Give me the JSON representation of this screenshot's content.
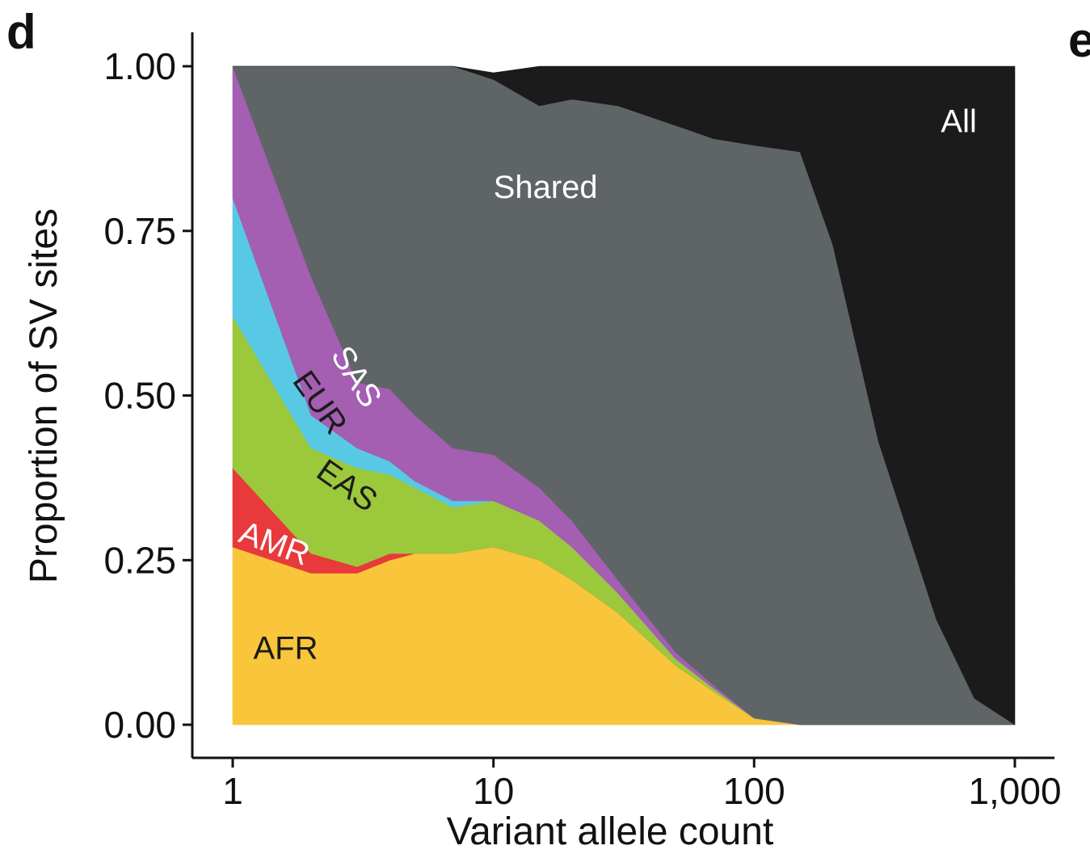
{
  "panel_letters": {
    "current": "d",
    "next": "e"
  },
  "chart_data": {
    "type": "area",
    "stacked": true,
    "normalized": true,
    "xlabel": "Variant allele count",
    "ylabel": "Proportion of SV sites",
    "xscale": "log",
    "xlim": [
      1,
      1000
    ],
    "ylim": [
      0,
      1
    ],
    "x_ticks": [
      1,
      10,
      100,
      1000
    ],
    "x_tick_labels": [
      "1",
      "10",
      "100",
      "1,000"
    ],
    "y_ticks": [
      0,
      0.25,
      0.5,
      0.75,
      1
    ],
    "y_tick_labels": [
      "0.00",
      "0.25",
      "0.50",
      "0.75",
      "1.00"
    ],
    "grid": false,
    "legend": "none (direct labels)",
    "x": [
      1,
      2,
      3,
      4,
      5,
      7,
      10,
      15,
      20,
      30,
      50,
      70,
      100,
      150,
      200,
      300,
      500,
      700,
      1000
    ],
    "series": [
      {
        "name": "AFR",
        "color": "#F9C53B",
        "values": [
          0.27,
          0.23,
          0.23,
          0.25,
          0.26,
          0.26,
          0.27,
          0.25,
          0.22,
          0.17,
          0.09,
          0.05,
          0.01,
          0,
          0,
          0,
          0,
          0,
          0
        ]
      },
      {
        "name": "AMR",
        "color": "#E8393B",
        "values": [
          0.12,
          0.03,
          0.01,
          0.01,
          0,
          0,
          0,
          0,
          0,
          0,
          0,
          0,
          0,
          0,
          0,
          0,
          0,
          0,
          0
        ]
      },
      {
        "name": "EAS",
        "color": "#9CC83B",
        "values": [
          0.23,
          0.16,
          0.15,
          0.12,
          0.1,
          0.07,
          0.07,
          0.06,
          0.05,
          0.03,
          0.01,
          0.005,
          0,
          0,
          0,
          0,
          0,
          0,
          0
        ]
      },
      {
        "name": "EUR",
        "color": "#58C9E5",
        "values": [
          0.18,
          0.05,
          0.03,
          0.02,
          0.01,
          0.01,
          0,
          0,
          0,
          0,
          0,
          0,
          0,
          0,
          0,
          0,
          0,
          0,
          0
        ]
      },
      {
        "name": "SAS",
        "color": "#A45EB2",
        "values": [
          0.2,
          0.21,
          0.1,
          0.11,
          0.1,
          0.08,
          0.07,
          0.05,
          0.04,
          0.02,
          0.01,
          0.005,
          0,
          0,
          0,
          0,
          0,
          0,
          0
        ]
      },
      {
        "name": "Shared",
        "color": "#5F6466",
        "values": [
          0,
          0.32,
          0.48,
          0.49,
          0.53,
          0.58,
          0.57,
          0.58,
          0.64,
          0.72,
          0.8,
          0.83,
          0.87,
          0.87,
          0.73,
          0.43,
          0.16,
          0.04,
          0
        ]
      },
      {
        "name": "All",
        "color": "#1B1B1B",
        "values": [
          0,
          0,
          0,
          0,
          0,
          0,
          0.01,
          0.06,
          0.05,
          0.06,
          0.09,
          0.11,
          0.12,
          0.13,
          0.27,
          0.57,
          0.84,
          0.96,
          1
        ]
      }
    ],
    "region_labels": [
      {
        "text": "AFR",
        "x": 1.2,
        "y": 0.1,
        "rotate": 0,
        "color": "#1B1B1B"
      },
      {
        "text": "AMR",
        "x": 1.4,
        "y": 0.26,
        "rotate": 20,
        "color": "#FFFFFF"
      },
      {
        "text": "EAS",
        "x": 2.6,
        "y": 0.35,
        "rotate": 35,
        "color": "#1B1B1B"
      },
      {
        "text": "EUR",
        "x": 2.0,
        "y": 0.48,
        "rotate": 55,
        "color": "#1B1B1B"
      },
      {
        "text": "SAS",
        "x": 2.75,
        "y": 0.52,
        "rotate": 58,
        "color": "#FFFFFF"
      },
      {
        "text": "Shared",
        "x": 10,
        "y": 0.8,
        "rotate": 0,
        "color": "#FFFFFF"
      },
      {
        "text": "All",
        "x": 520,
        "y": 0.9,
        "rotate": 0,
        "color": "#FFFFFF"
      }
    ]
  }
}
